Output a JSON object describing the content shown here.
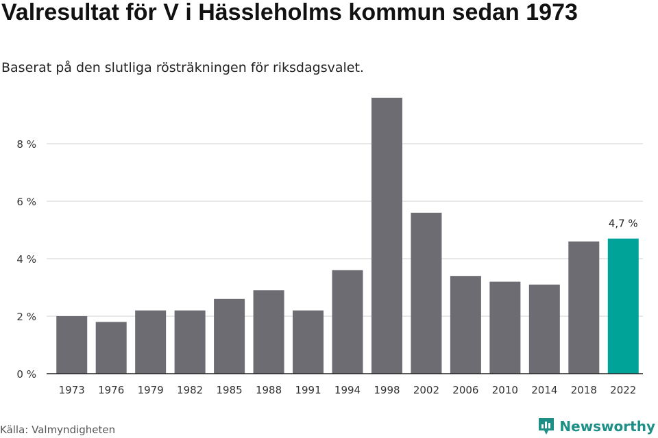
{
  "header": {
    "title": "Valresultat för V i Hässleholms kommun sedan 1973",
    "subtitle": "Baserat på den slutliga rösträkningen för riksdagsvalet."
  },
  "footer": {
    "source": "Källa: Valmyndigheten",
    "brand": "Newsworthy"
  },
  "colors": {
    "bar": "#6d6c72",
    "highlight": "#00a398",
    "grid": "#dcdcdc",
    "brand": "#1e8f86"
  },
  "chart_data": {
    "type": "bar",
    "categories": [
      "1973",
      "1976",
      "1979",
      "1982",
      "1985",
      "1988",
      "1991",
      "1994",
      "1998",
      "2002",
      "2006",
      "2010",
      "2014",
      "2018",
      "2022"
    ],
    "values": [
      2.0,
      1.8,
      2.2,
      2.2,
      2.6,
      2.9,
      2.2,
      3.6,
      9.6,
      5.6,
      3.4,
      3.2,
      3.1,
      4.6,
      4.7
    ],
    "yticks": [
      "0 %",
      "2 %",
      "4 %",
      "6 %",
      "8 %"
    ],
    "ytick_values": [
      0,
      2,
      4,
      6,
      8
    ],
    "ylim": [
      0,
      10
    ],
    "highlight_index": 14,
    "annotation": "4,7 %",
    "grid": true
  }
}
